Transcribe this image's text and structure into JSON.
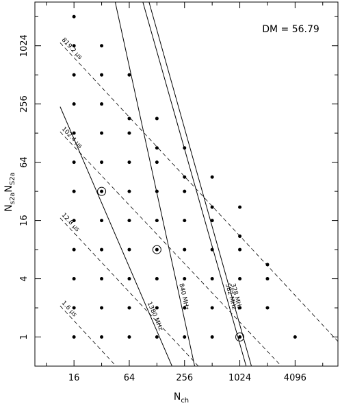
{
  "chart_data": {
    "type": "scatter",
    "xlabel": {
      "main": "N",
      "sub": "ch"
    },
    "ylabel": {
      "parts": [
        {
          "main": "N",
          "sub": "s2a"
        },
        {
          "main": "N",
          "sub": "S2a"
        }
      ]
    },
    "annotation": "DM = 56.79",
    "x_scale": "log2",
    "y_scale": "log2",
    "xlim": [
      6,
      12000
    ],
    "ylim": [
      0.5,
      2896
    ],
    "x_ticks": [
      16,
      64,
      256,
      1024,
      4096
    ],
    "x_tick_labels": [
      "16",
      "64",
      "256",
      "1024",
      "4096"
    ],
    "y_ticks": [
      1,
      4,
      16,
      64,
      256,
      1024
    ],
    "y_tick_labels": [
      "1",
      "4",
      "16",
      "64",
      "256",
      "1024"
    ],
    "points": [
      [
        16,
        1
      ],
      [
        16,
        2
      ],
      [
        16,
        4
      ],
      [
        16,
        8
      ],
      [
        16,
        16
      ],
      [
        16,
        32
      ],
      [
        16,
        64
      ],
      [
        16,
        128
      ],
      [
        16,
        256
      ],
      [
        16,
        512
      ],
      [
        16,
        1024
      ],
      [
        16,
        2048
      ],
      [
        32,
        1
      ],
      [
        32,
        2
      ],
      [
        32,
        4
      ],
      [
        32,
        8
      ],
      [
        32,
        16
      ],
      [
        32,
        32
      ],
      [
        32,
        64
      ],
      [
        32,
        128
      ],
      [
        32,
        256
      ],
      [
        32,
        512
      ],
      [
        32,
        1024
      ],
      [
        64,
        1
      ],
      [
        64,
        2
      ],
      [
        64,
        4
      ],
      [
        64,
        8
      ],
      [
        64,
        16
      ],
      [
        64,
        32
      ],
      [
        64,
        64
      ],
      [
        64,
        128
      ],
      [
        64,
        181
      ],
      [
        64,
        512
      ],
      [
        128,
        1
      ],
      [
        128,
        2
      ],
      [
        128,
        4
      ],
      [
        128,
        8
      ],
      [
        128,
        16
      ],
      [
        128,
        32
      ],
      [
        128,
        64
      ],
      [
        128,
        90
      ],
      [
        128,
        181
      ],
      [
        256,
        1
      ],
      [
        256,
        2
      ],
      [
        256,
        4
      ],
      [
        256,
        8
      ],
      [
        256,
        16
      ],
      [
        256,
        32
      ],
      [
        256,
        45
      ],
      [
        256,
        90
      ],
      [
        512,
        1
      ],
      [
        512,
        2
      ],
      [
        512,
        4
      ],
      [
        512,
        8
      ],
      [
        512,
        16
      ],
      [
        512,
        22
      ],
      [
        512,
        45
      ],
      [
        1024,
        1
      ],
      [
        1024,
        2
      ],
      [
        1024,
        4
      ],
      [
        1024,
        8
      ],
      [
        1024,
        11
      ],
      [
        1024,
        22
      ],
      [
        2048,
        2
      ],
      [
        2048,
        4
      ],
      [
        2048,
        5.6
      ],
      [
        4096,
        1
      ]
    ],
    "circled_points": [
      [
        32,
        32
      ],
      [
        128,
        8
      ],
      [
        1024,
        1
      ]
    ],
    "dashed_lines": [
      {
        "label": "819.2 μs",
        "x": [
          11.3,
          12000
        ],
        "y": [
          1100,
          0.9
        ]
      },
      {
        "label": "102.4 μs",
        "x": [
          11.3,
          2900
        ],
        "y": [
          132,
          0.5
        ]
      },
      {
        "label": "12.8 μs",
        "x": [
          11.3,
          362
        ],
        "y": [
          17,
          0.5
        ]
      },
      {
        "label": "1.6 μs",
        "x": [
          11.3,
          46
        ],
        "y": [
          2.1,
          0.5
        ]
      }
    ],
    "solid_lines": [
      {
        "label": "1380 MHz",
        "x": [
          11.3,
          187
        ],
        "y": [
          240,
          0.5
        ]
      },
      {
        "label": "840 MHz",
        "x": [
          45,
          330
        ],
        "y": [
          2896,
          0.5
        ]
      },
      {
        "label": "582 MHz",
        "x": [
          90,
          1200
        ],
        "y": [
          2896,
          0.5
        ]
      },
      {
        "label": "328 MHz",
        "x": [
          105,
          1370
        ],
        "y": [
          2896,
          0.5
        ]
      }
    ]
  }
}
